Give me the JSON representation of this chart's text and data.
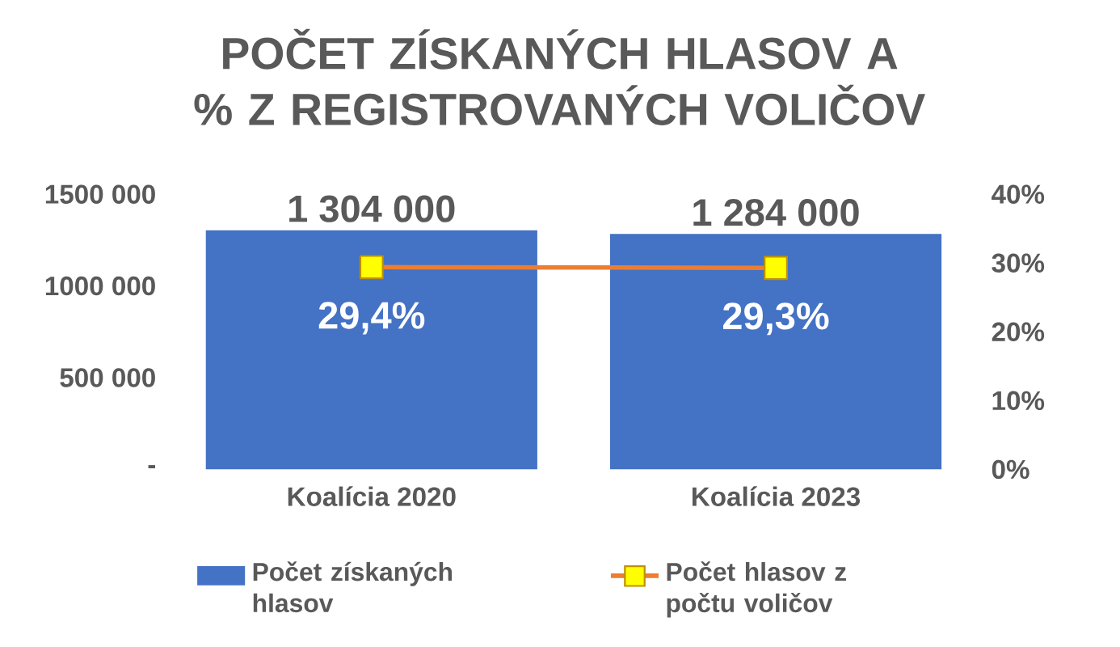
{
  "chart_data": {
    "type": "bar",
    "title": "POČET ZÍSKANÝCH HLASOV A % Z REGISTROVANÝCH VOLIČOV",
    "categories": [
      "Koalícia 2020",
      "Koalícia 2023"
    ],
    "series": [
      {
        "name": "Počet získaných hlasov",
        "color": "#4472c4",
        "values": [
          1304000,
          1284000
        ],
        "value_labels": [
          "1 304 000",
          "1 284 000"
        ]
      },
      {
        "name": "Počet hlasov z počtu voličov",
        "type": "line",
        "axis": "y2",
        "color": "#ed7d31",
        "marker": "square",
        "values": [
          29.4,
          29.3
        ],
        "value_labels": [
          "29,4%",
          "29,3%"
        ]
      }
    ],
    "ylim": [
      0,
      1500000
    ],
    "yticks": [
      {
        "value": 0,
        "label": "-"
      },
      {
        "value": 500000,
        "label": "500 000"
      },
      {
        "value": 1000000,
        "label": "1000 000"
      },
      {
        "value": 1500000,
        "label": "1500 000"
      }
    ],
    "y2lim": [
      0,
      40
    ],
    "y2ticks": [
      {
        "value": 0,
        "label": "0%"
      },
      {
        "value": 10,
        "label": "10%"
      },
      {
        "value": 20,
        "label": "20%"
      },
      {
        "value": 30,
        "label": "30%"
      },
      {
        "value": 40,
        "label": "40%"
      }
    ],
    "grid": false,
    "legend": "bottom"
  }
}
